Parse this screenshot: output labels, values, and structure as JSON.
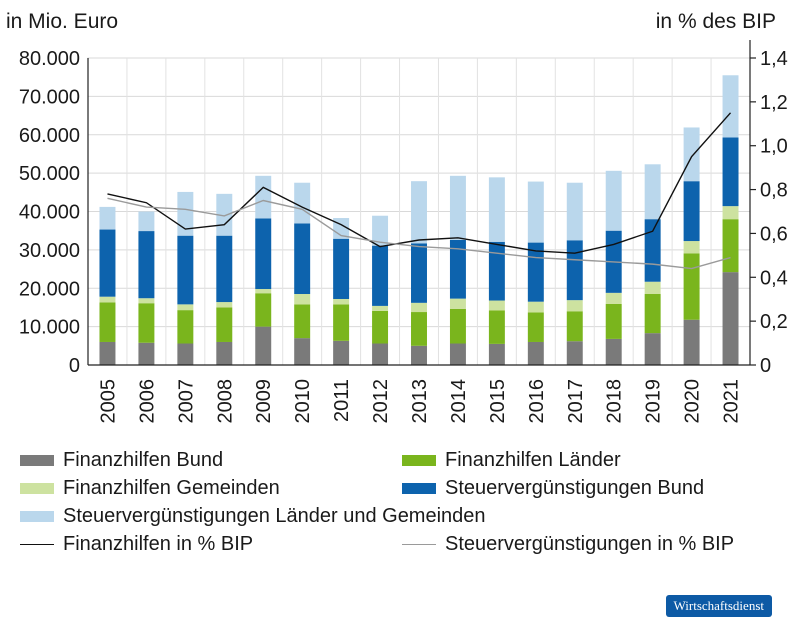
{
  "chart_data": {
    "type": "bar",
    "stacked": true,
    "left_axis_label": "in Mio. Euro",
    "right_axis_label": "in % des BIP",
    "categories": [
      "2005",
      "2006",
      "2007",
      "2008",
      "2009",
      "2010",
      "2011",
      "2012",
      "2013",
      "2014",
      "2015",
      "2016",
      "2017",
      "2018",
      "2019",
      "2020",
      "2021"
    ],
    "ylim": [
      0,
      80000
    ],
    "y_ticks": [
      0,
      10000,
      20000,
      30000,
      40000,
      50000,
      60000,
      70000,
      80000
    ],
    "y_tick_labels": [
      "0",
      "10.000",
      "20.000",
      "30.000",
      "40.000",
      "50.000",
      "60.000",
      "70.000",
      "80.000"
    ],
    "y2lim": [
      0,
      1.4
    ],
    "y2_ticks": [
      0,
      0.2,
      0.4,
      0.6,
      0.8,
      1.0,
      1.2,
      1.4
    ],
    "y2_tick_labels": [
      "0",
      "0,2",
      "0,4",
      "0,6",
      "0,8",
      "1,0",
      "1,2",
      "1,4"
    ],
    "series": [
      {
        "name": "Finanzhilfen Bund",
        "color": "#7a7a7a",
        "values": [
          6000,
          5800,
          5600,
          6000,
          10000,
          7000,
          6300,
          5600,
          5000,
          5600,
          5500,
          6000,
          6200,
          6800,
          8300,
          11800,
          24200
        ]
      },
      {
        "name": "Finanzhilfen Länder",
        "color": "#7ab51d",
        "values": [
          10300,
          10300,
          8700,
          9000,
          8700,
          8800,
          9500,
          8500,
          8800,
          9000,
          8700,
          7700,
          7800,
          9100,
          10200,
          17300,
          13800
        ]
      },
      {
        "name": "Finanzhilfen Gemeinden",
        "color": "#cde2a0",
        "values": [
          1500,
          1300,
          1500,
          1400,
          1100,
          2700,
          1400,
          1300,
          2400,
          2700,
          2600,
          2800,
          2900,
          2900,
          3200,
          3200,
          3400
        ]
      },
      {
        "name": "Steuervergünstigungen Bund",
        "color": "#0d63ad",
        "values": [
          17500,
          17500,
          17900,
          17300,
          18400,
          18400,
          15700,
          15700,
          15500,
          15300,
          15300,
          15400,
          15600,
          16200,
          16300,
          15600,
          17900
        ]
      },
      {
        "name": "Steuervergünstigungen Länder und Gemeinden",
        "color": "#bad7ec",
        "values": [
          5900,
          5100,
          11400,
          10900,
          11100,
          10600,
          5400,
          7800,
          16200,
          16700,
          16800,
          15900,
          15000,
          15600,
          14300,
          14000,
          16200
        ]
      }
    ],
    "lines": [
      {
        "name": "Finanzhilfen in % BIP",
        "color": "#111111",
        "values": [
          0.78,
          0.74,
          0.62,
          0.64,
          0.81,
          0.72,
          0.64,
          0.54,
          0.57,
          0.58,
          0.55,
          0.52,
          0.51,
          0.55,
          0.61,
          0.95,
          1.15
        ]
      },
      {
        "name": "Steuervergünstigungen in % BIP",
        "color": "#9a9a9a",
        "values": [
          0.76,
          0.72,
          0.71,
          0.68,
          0.75,
          0.71,
          0.59,
          0.56,
          0.54,
          0.53,
          0.51,
          0.49,
          0.48,
          0.47,
          0.46,
          0.44,
          0.49
        ]
      }
    ]
  },
  "legend_labels": [
    "Finanzhilfen Bund",
    "Finanzhilfen Länder",
    "Finanzhilfen Gemeinden",
    "Steuervergünstigungen Bund",
    "Steuervergünstigungen Länder und Gemeinden",
    "Finanzhilfen in % BIP",
    "Steuervergünstigungen in % BIP"
  ],
  "badge": "Wirtschaftsdienst"
}
